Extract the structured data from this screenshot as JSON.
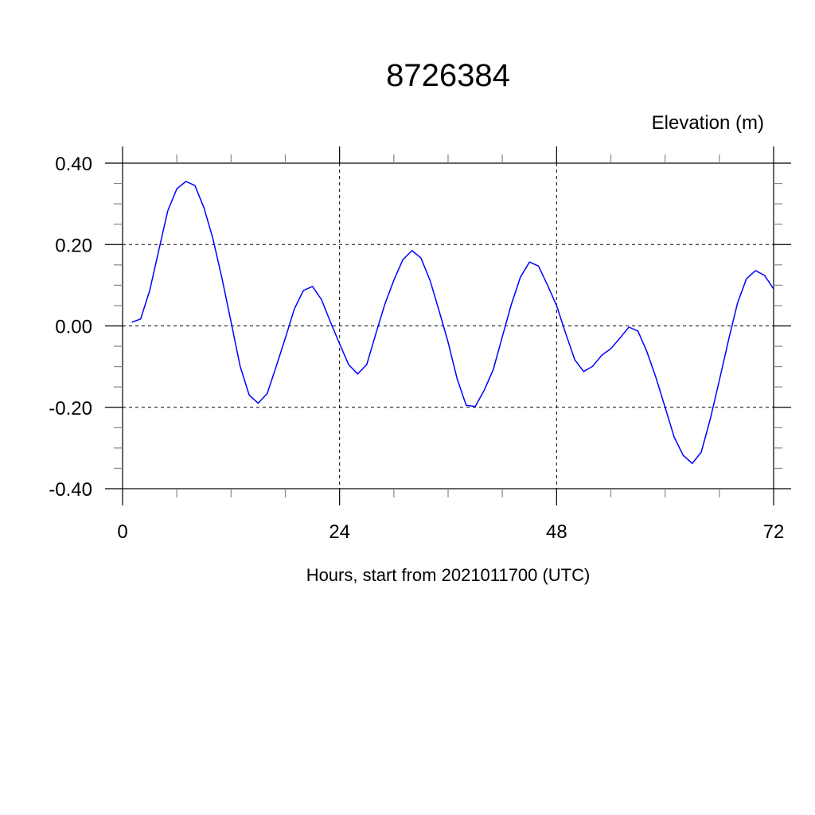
{
  "chart_data": {
    "type": "line",
    "title": "8726384",
    "ylabel": "Elevation (m)",
    "xlabel": "Hours, start from 2021011700 (UTC)",
    "xlim": [
      0,
      72
    ],
    "ylim": [
      -0.4,
      0.4
    ],
    "xticks": [
      0,
      24,
      48,
      72
    ],
    "xtick_labels": [
      "0",
      "24",
      "48",
      "72"
    ],
    "yticks": [
      0.4,
      0.2,
      0.0,
      -0.2,
      -0.4
    ],
    "ytick_labels": [
      "0.40",
      "0.20",
      "0.00",
      "-0.20",
      "-0.40"
    ],
    "grid": true,
    "line_color": "#0000ff",
    "series": [
      {
        "x": [
          1,
          2,
          3,
          4,
          5,
          6,
          7,
          8,
          9,
          10,
          11,
          12,
          13,
          14,
          15,
          16,
          17,
          18,
          19,
          20,
          21,
          22,
          23,
          24,
          25,
          26,
          27,
          28,
          29,
          30,
          31,
          32,
          33,
          34,
          35,
          36,
          37,
          38,
          39,
          40,
          41,
          42,
          43,
          44,
          45,
          46,
          47,
          48,
          49,
          50,
          51,
          52,
          53,
          54,
          55,
          56,
          57,
          58,
          59,
          60,
          61,
          62,
          63,
          64,
          65,
          66,
          67,
          68,
          69,
          70,
          71,
          72
        ],
        "values": [
          0.009,
          0.017,
          0.087,
          0.185,
          0.283,
          0.337,
          0.355,
          0.345,
          0.29,
          0.214,
          0.116,
          0.01,
          -0.099,
          -0.17,
          -0.19,
          -0.166,
          -0.099,
          -0.03,
          0.042,
          0.087,
          0.097,
          0.065,
          0.009,
          -0.044,
          -0.095,
          -0.118,
          -0.095,
          -0.02,
          0.053,
          0.112,
          0.163,
          0.185,
          0.167,
          0.112,
          0.038,
          -0.04,
          -0.13,
          -0.195,
          -0.198,
          -0.158,
          -0.107,
          -0.026,
          0.053,
          0.12,
          0.157,
          0.147,
          0.1,
          0.05,
          -0.018,
          -0.083,
          -0.112,
          -0.099,
          -0.072,
          -0.056,
          -0.03,
          -0.003,
          -0.013,
          -0.064,
          -0.128,
          -0.2,
          -0.273,
          -0.318,
          -0.338,
          -0.31,
          -0.228,
          -0.134,
          -0.036,
          0.056,
          0.116,
          0.136,
          0.124,
          0.091
        ]
      }
    ]
  }
}
